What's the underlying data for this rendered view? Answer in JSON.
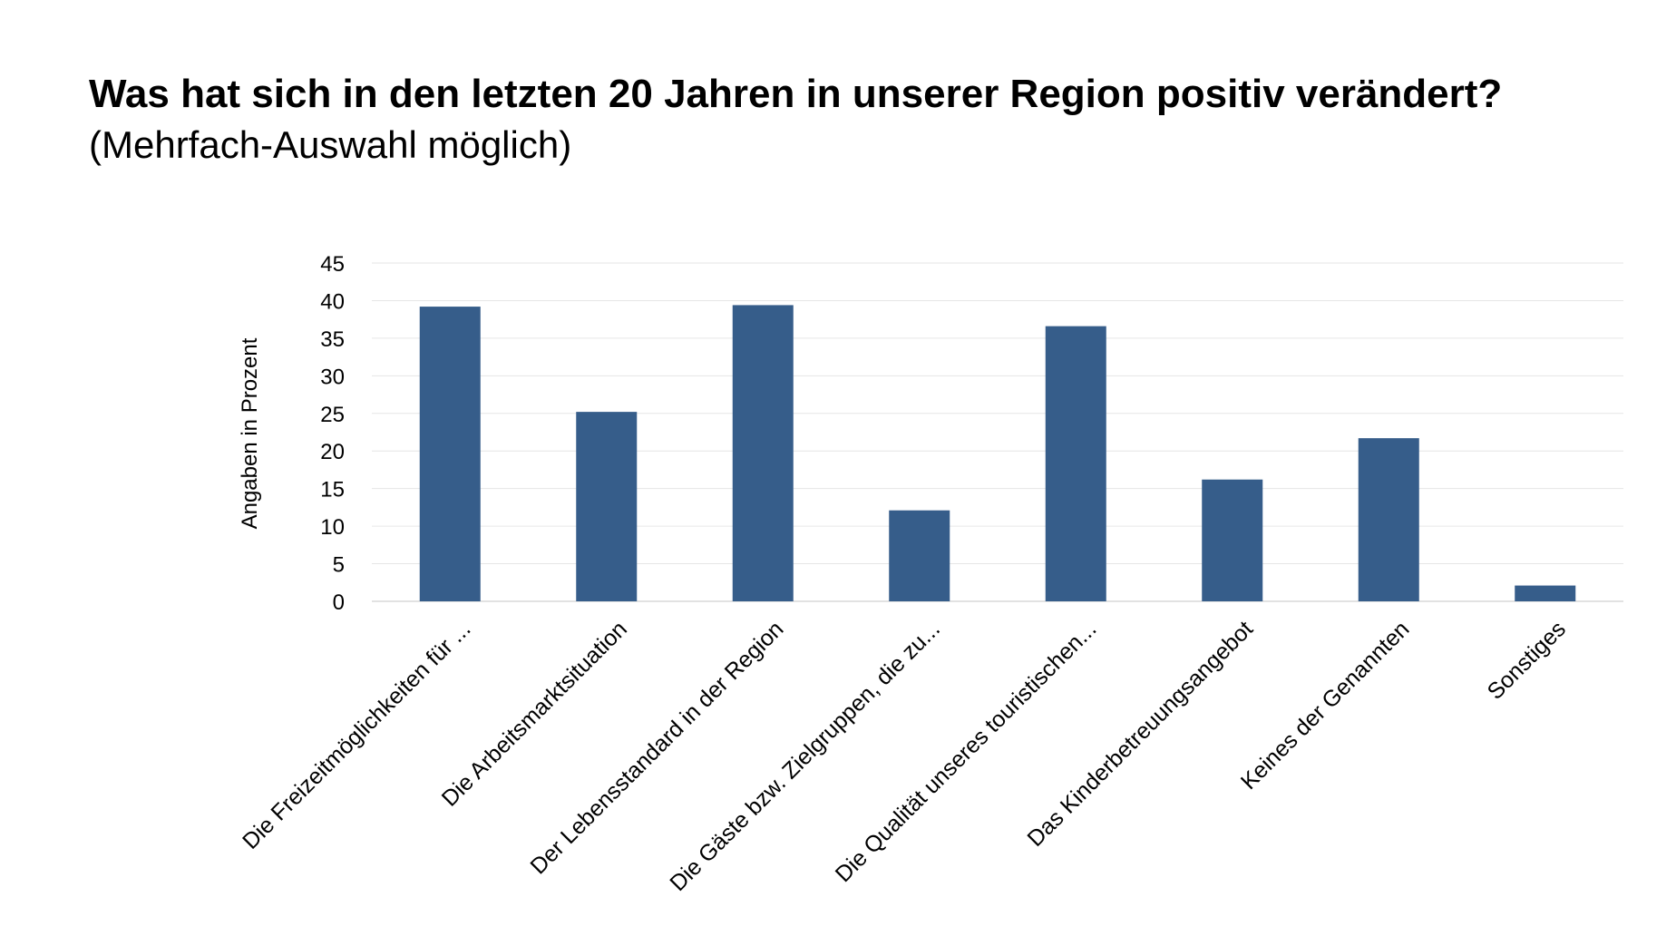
{
  "header": {
    "title": "Was hat sich in den letzten 20 Jahren in unserer Region positiv verändert?",
    "subtitle": "(Mehrfach-Auswahl möglich)"
  },
  "chart_data": {
    "type": "bar",
    "title": "",
    "xlabel": "",
    "ylabel": "Angaben in Prozent",
    "ylim": [
      0,
      45
    ],
    "yticks": [
      0,
      5,
      10,
      15,
      20,
      25,
      30,
      35,
      40,
      45
    ],
    "grid": true,
    "legend": "none",
    "bar_color": "#365d8a",
    "categories": [
      "Die Freizeitmöglichkeiten für ...",
      "Die Arbeitsmarktsituation",
      "Der Lebensstandard in der Region",
      "Die Gäste bzw. Zielgruppen, die zu...",
      "Die Qualität unseres touristischen...",
      "Das Kinderbetreuungsangebot",
      "Keines der Genannten",
      "Sonstiges"
    ],
    "values": [
      39.2,
      25.2,
      39.4,
      12.1,
      36.6,
      16.2,
      21.7,
      2.1
    ]
  }
}
